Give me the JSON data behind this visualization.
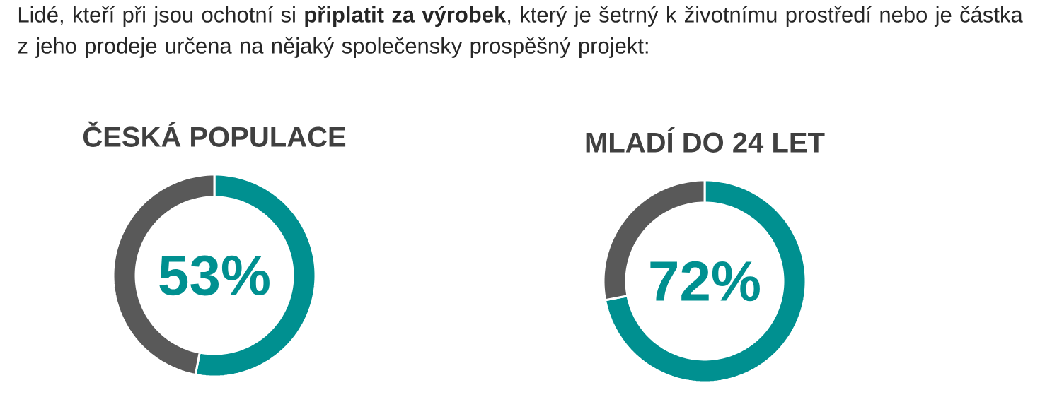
{
  "chart_data": [
    {
      "type": "donut",
      "title": "ČESKÁ POPULACE",
      "annotations": [
        "Lidé, kteří při jsou ochotní si **připlatit za výrobek**, který je šetrný k životnímu prostředí nebo je částka z jeho prodeje určena na nějaký společensky prospěšný projekt:"
      ],
      "categories": [
        null,
        null
      ],
      "values": [
        53,
        47
      ],
      "colors": [
        "#009090",
        "#595959"
      ],
      "value_labels": [
        "53%",
        null
      ]
    },
    {
      "type": "donut",
      "title": "MLADÍ DO 24 LET",
      "categories": [
        null,
        null
      ],
      "values": [
        72,
        28
      ],
      "colors": [
        "#009090",
        "#595959"
      ],
      "value_labels": [
        "72%",
        null
      ]
    }
  ]
}
